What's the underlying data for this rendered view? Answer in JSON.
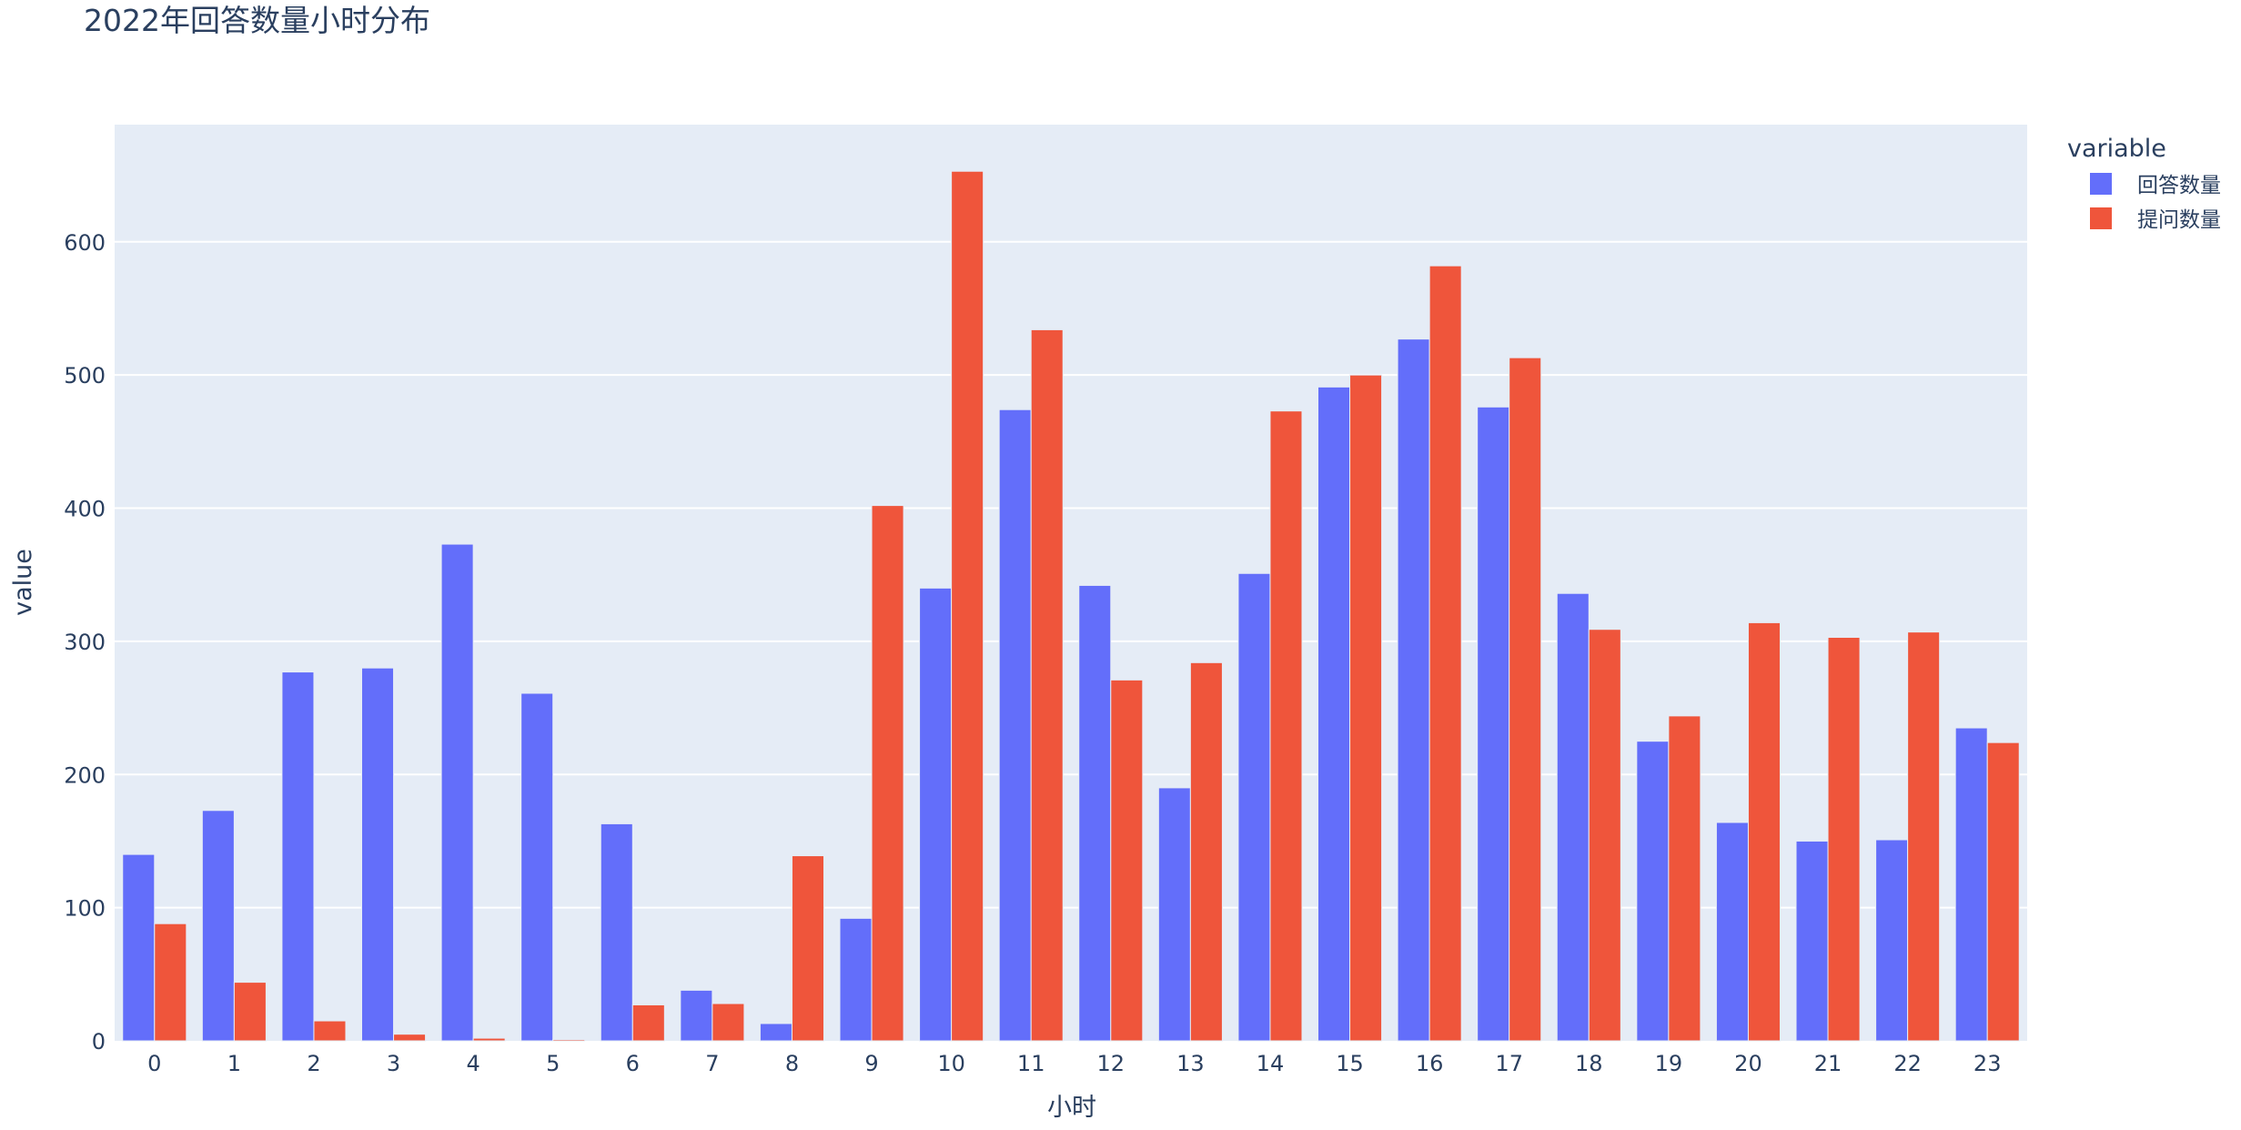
{
  "chart_data": {
    "type": "bar",
    "barmode": "group",
    "title": "2022年回答数量小时分布",
    "xlabel": "小时",
    "ylabel": "value",
    "legend_title": "variable",
    "legend_position": "top-right",
    "grid": true,
    "ylim": [
      0,
      688
    ],
    "yticks": [
      0,
      100,
      200,
      300,
      400,
      500,
      600
    ],
    "categories": [
      "0",
      "1",
      "2",
      "3",
      "4",
      "5",
      "6",
      "7",
      "8",
      "9",
      "10",
      "11",
      "12",
      "13",
      "14",
      "15",
      "16",
      "17",
      "18",
      "19",
      "20",
      "21",
      "22",
      "23"
    ],
    "series": [
      {
        "name": "回答数量",
        "color": "#636efa",
        "values": [
          140,
          173,
          277,
          280,
          373,
          261,
          163,
          38,
          13,
          92,
          340,
          474,
          342,
          190,
          351,
          491,
          527,
          476,
          336,
          225,
          164,
          150,
          151,
          235
        ]
      },
      {
        "name": "提问数量",
        "color": "#ef553b",
        "values": [
          88,
          44,
          15,
          5,
          2,
          1,
          27,
          28,
          139,
          402,
          653,
          534,
          271,
          284,
          473,
          500,
          582,
          513,
          309,
          244,
          314,
          303,
          307,
          224
        ]
      }
    ],
    "plot_bgcolor": "#e5ecf6",
    "gridcolor": "#ffffff"
  }
}
